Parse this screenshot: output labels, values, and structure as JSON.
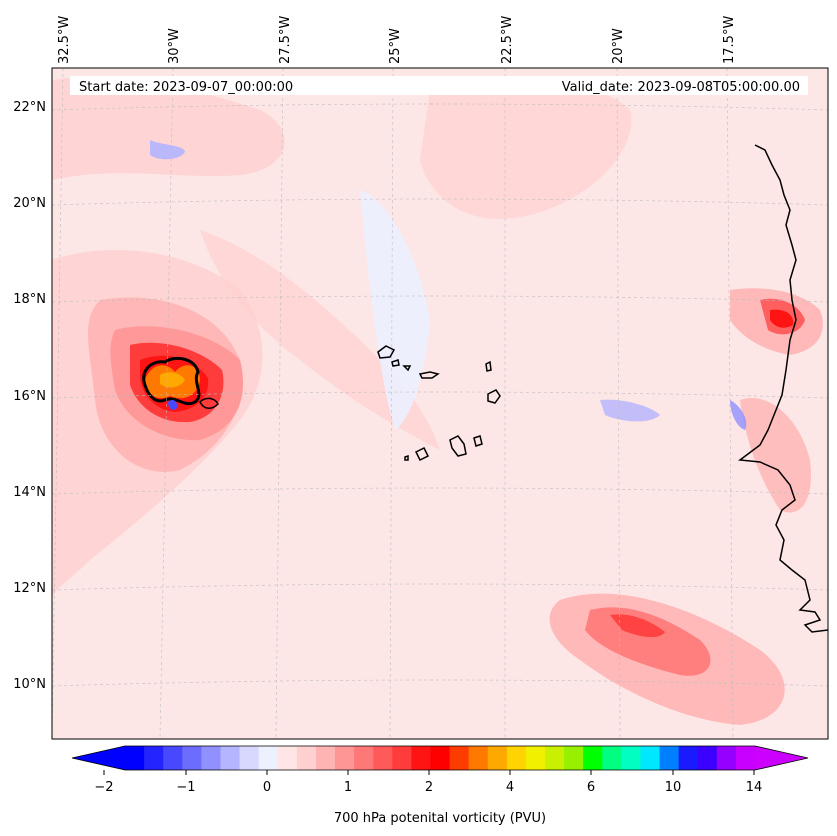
{
  "map": {
    "start_date": "Start date: 2023-09-07_00:00:00",
    "valid_date": "Valid_date: 2023-09-08T05:00:00.00",
    "lon_labels": [
      "32.5°W",
      "30°W",
      "27.5°W",
      "25°W",
      "22.5°W",
      "20°W",
      "17.5°W"
    ],
    "lat_labels": [
      "22°N",
      "20°N",
      "18°N",
      "16°N",
      "14°N",
      "12°N",
      "10°N"
    ],
    "colors": {
      "background_field": "#fde6e6",
      "frame": "#000000",
      "coastline": "#000000",
      "gridline": "#bbbbbb"
    }
  },
  "colorbar": {
    "label": "700 hPa potenital vorticity (PVU)",
    "tick_labels": [
      "−2",
      "−1",
      "0",
      "1",
      "2",
      "4",
      "6",
      "10",
      "14"
    ],
    "colors": [
      "#0000ff",
      "#2424ff",
      "#4848ff",
      "#6c6cff",
      "#9090ff",
      "#b4b4ff",
      "#d8d8ff",
      "#ecf0ff",
      "#ffe6e6",
      "#ffd0d0",
      "#ffb4b4",
      "#ff9696",
      "#ff7878",
      "#ff5a5a",
      "#ff3c3c",
      "#ff1414",
      "#ff0000",
      "#ff3c00",
      "#ff7800",
      "#ffa800",
      "#ffd400",
      "#f0f000",
      "#c8f000",
      "#96f000",
      "#00ff00",
      "#00ff80",
      "#00ffc0",
      "#00e8ff",
      "#0080ff",
      "#1a1aff",
      "#3c00ff",
      "#9600ff",
      "#c800ff"
    ],
    "under_color": "#0000ff",
    "over_color": "#cc00ff"
  }
}
